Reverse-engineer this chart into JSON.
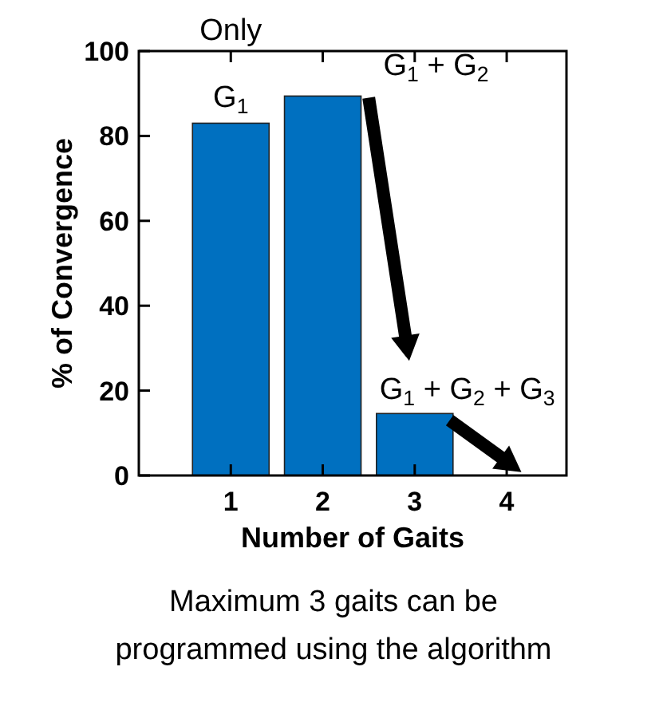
{
  "chart_data": {
    "type": "bar",
    "x": [
      1,
      2,
      3,
      4
    ],
    "values": [
      83,
      89.4,
      14.6,
      0
    ],
    "color": "#0070c0",
    "xlim": [
      0,
      4.65
    ],
    "xticks": [
      1,
      2,
      3,
      4
    ],
    "ylim": [
      0,
      100
    ],
    "yticks": [
      0,
      20,
      40,
      60,
      80,
      100
    ],
    "xlabel": "Number of Gaits",
    "ylabel": "% of Convergence",
    "grid": false,
    "annotations": [
      {
        "text": "Only G$_{1}$",
        "x": 1,
        "y": 83
      },
      {
        "text": "G$_{1}$ + G$_{2}$",
        "x": 2,
        "y": 89.4
      },
      {
        "text": "G$_{1}$ + G$_{2}$ + G$_{3}$",
        "x": 3,
        "y": 14.6
      },
      "Maximum 3 gaits can be programmed using the algorithm"
    ]
  }
}
